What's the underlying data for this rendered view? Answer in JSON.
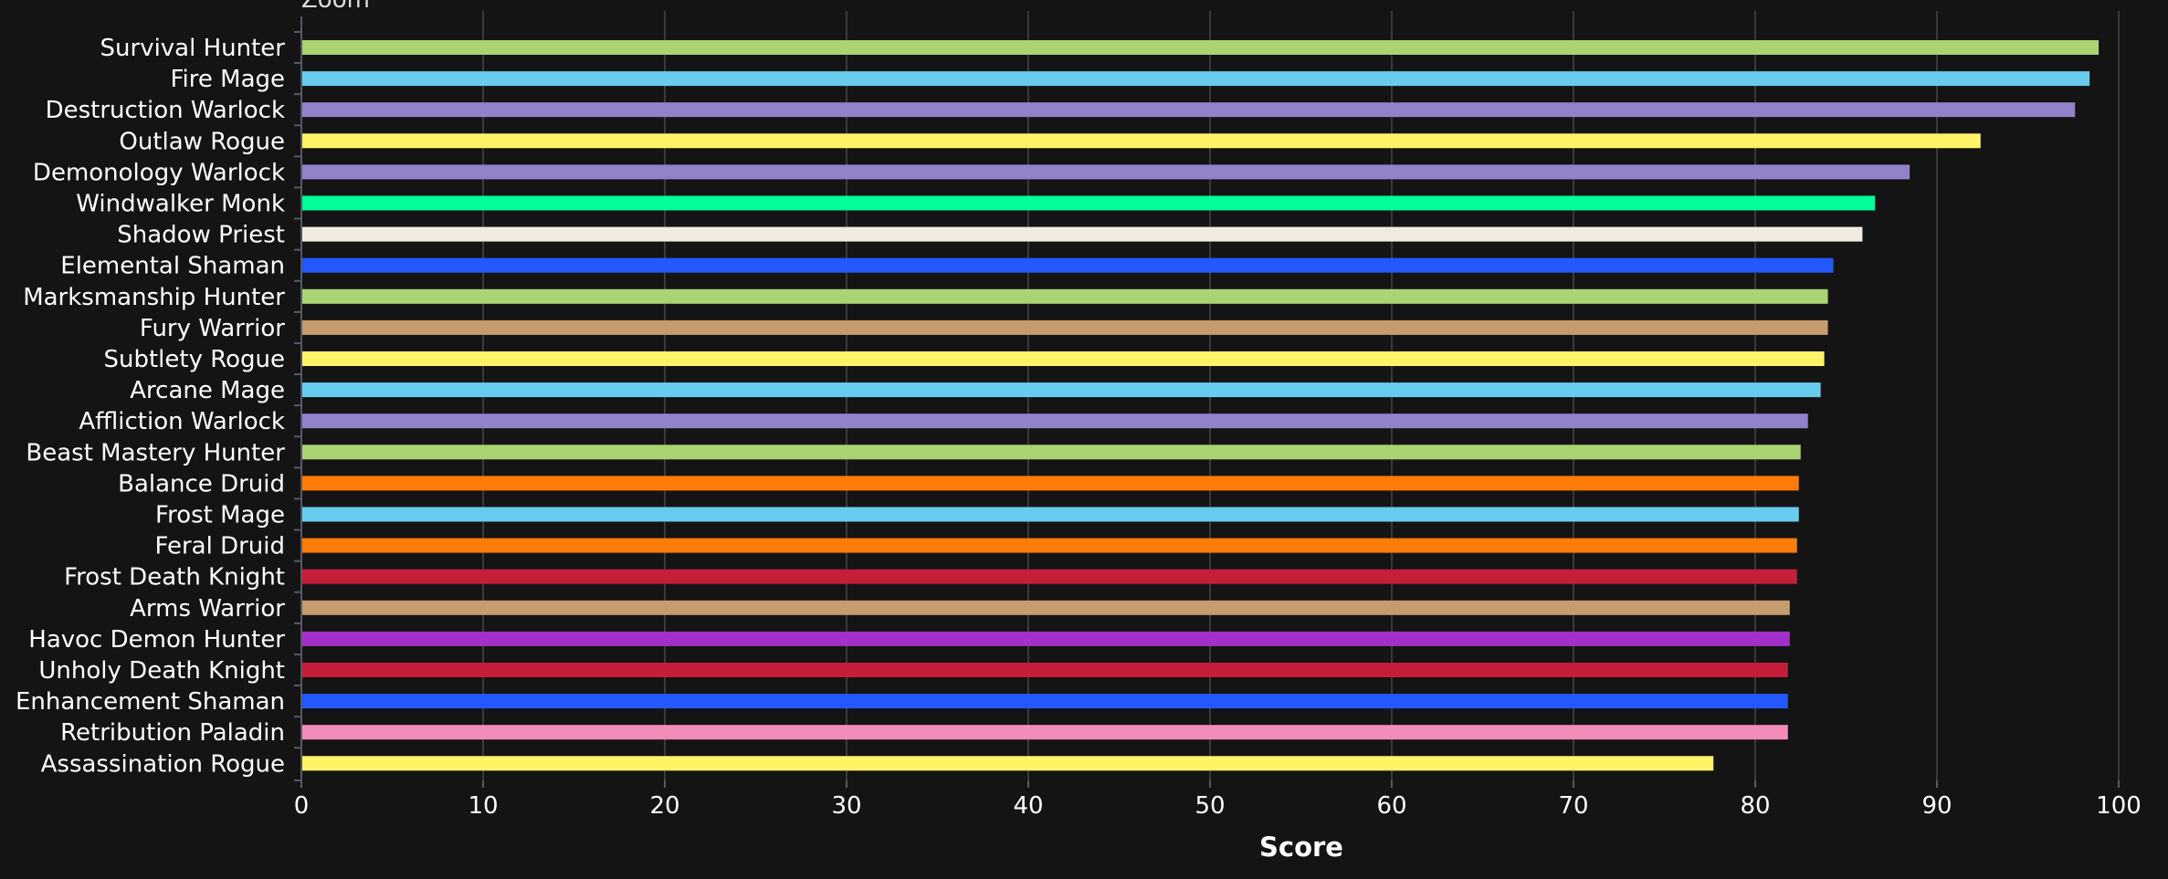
{
  "chart_data": {
    "type": "bar",
    "orientation": "horizontal",
    "zoom_label": "Zoom",
    "categories": [
      "Survival Hunter",
      "Fire Mage",
      "Destruction Warlock",
      "Outlaw Rogue",
      "Demonology Warlock",
      "Windwalker Monk",
      "Shadow Priest",
      "Elemental Shaman",
      "Marksmanship Hunter",
      "Fury Warrior",
      "Subtlety Rogue",
      "Arcane Mage",
      "Affliction Warlock",
      "Beast Mastery Hunter",
      "Balance Druid",
      "Frost Mage",
      "Feral Druid",
      "Frost Death Knight",
      "Arms Warrior",
      "Havoc Demon Hunter",
      "Unholy Death Knight",
      "Enhancement Shaman",
      "Retribution Paladin",
      "Assassination Rogue"
    ],
    "values": [
      98.9,
      98.4,
      97.6,
      92.4,
      88.5,
      86.6,
      85.9,
      84.3,
      84.0,
      84.0,
      83.8,
      83.6,
      82.9,
      82.5,
      82.4,
      82.4,
      82.3,
      82.3,
      81.9,
      81.9,
      81.8,
      81.8,
      81.8,
      77.7
    ],
    "colors": [
      "#aad372",
      "#68ccef",
      "#9382c9",
      "#fff468",
      "#9382c9",
      "#00ff96",
      "#f0ebe0",
      "#2359ff",
      "#aad372",
      "#c69b6d",
      "#fff468",
      "#68ccef",
      "#9382c9",
      "#aad372",
      "#ff7c0a",
      "#68ccef",
      "#ff7c0a",
      "#c41e3b",
      "#c69b6d",
      "#a330c9",
      "#c41e3b",
      "#2359ff",
      "#f48cba",
      "#fff468"
    ],
    "xlabel": "Score",
    "ylabel": "",
    "xlim": [
      0,
      100
    ],
    "xticks": [
      0,
      10,
      20,
      30,
      40,
      50,
      60,
      70,
      80,
      90,
      100
    ],
    "grid": true,
    "background": "#141414",
    "grid_color": "#3a3a3a",
    "axis_color": "#555a66"
  }
}
